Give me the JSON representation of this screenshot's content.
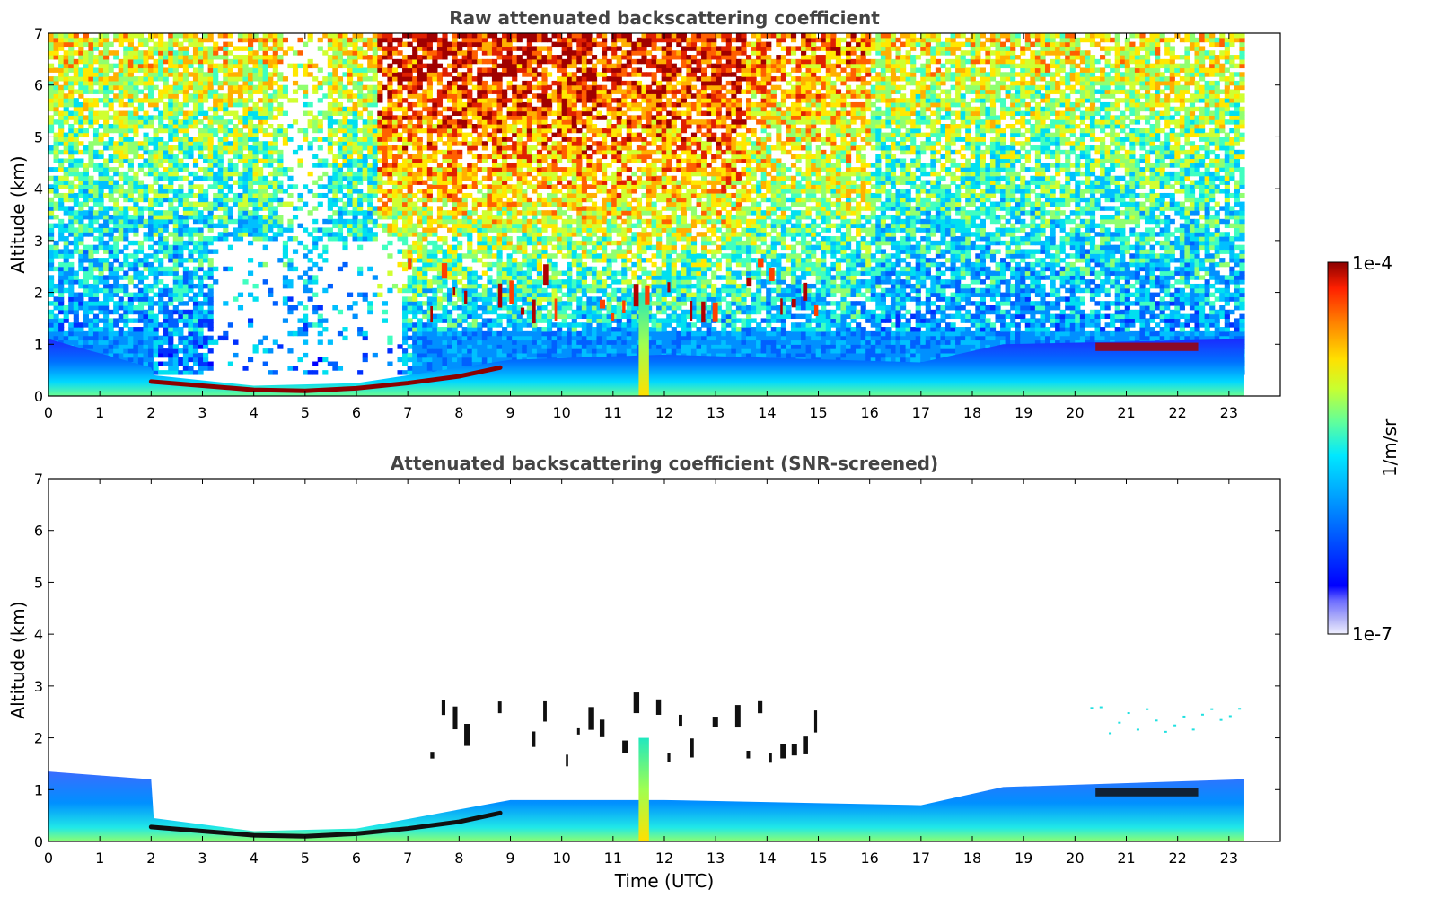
{
  "chart_data": [
    {
      "type": "heatmap",
      "title": "Raw attenuated backscattering coefficient",
      "xlabel": "",
      "ylabel": "Altitude (km)",
      "xlim": [
        0,
        24
      ],
      "ylim": [
        0,
        7
      ],
      "x_ticks": [
        "0",
        "1",
        "2",
        "3",
        "4",
        "5",
        "6",
        "7",
        "8",
        "9",
        "10",
        "11",
        "12",
        "13",
        "14",
        "15",
        "16",
        "17",
        "18",
        "19",
        "20",
        "21",
        "22",
        "23"
      ],
      "y_ticks": [
        "0",
        "1",
        "2",
        "3",
        "4",
        "5",
        "6",
        "7"
      ],
      "data_extent_x": [
        0,
        23.3
      ],
      "features": {
        "nighttime_boundary_layer": [
          {
            "t": 2.0,
            "alt_km": 0.28
          },
          {
            "t": 3.0,
            "alt_km": 0.2
          },
          {
            "t": 4.0,
            "alt_km": 0.12
          },
          {
            "t": 5.0,
            "alt_km": 0.1
          },
          {
            "t": 6.0,
            "alt_km": 0.15
          },
          {
            "t": 7.0,
            "alt_km": 0.25
          },
          {
            "t": 8.0,
            "alt_km": 0.38
          },
          {
            "t": 8.8,
            "alt_km": 0.55
          }
        ],
        "cloud_layer_1.5_2.5km_period_utc": [
          7,
          15
        ],
        "precipitation_column_utc": [
          11.5,
          11.7
        ],
        "evening_cloud_layer": {
          "t_start": 20.4,
          "t_end": 22.4,
          "alt_km": 0.95
        }
      }
    },
    {
      "type": "heatmap",
      "title": "Attenuated backscattering coefficient (SNR-screened)",
      "xlabel": "Time (UTC)",
      "ylabel": "Altitude (km)",
      "xlim": [
        0,
        24
      ],
      "ylim": [
        0,
        7
      ],
      "x_ticks": [
        "0",
        "1",
        "2",
        "3",
        "4",
        "5",
        "6",
        "7",
        "8",
        "9",
        "10",
        "11",
        "12",
        "13",
        "14",
        "15",
        "16",
        "17",
        "18",
        "19",
        "20",
        "21",
        "22",
        "23"
      ],
      "y_ticks": [
        "0",
        "1",
        "2",
        "3",
        "4",
        "5",
        "6",
        "7"
      ],
      "data_extent_x": [
        0,
        23.3
      ],
      "features": {
        "boundary_layer_top": [
          {
            "t": 0,
            "alt_km": 1.35
          },
          {
            "t": 2.0,
            "alt_km": 1.2
          },
          {
            "t": 2.05,
            "alt_km": 0.45
          },
          {
            "t": 4,
            "alt_km": 0.2
          },
          {
            "t": 6,
            "alt_km": 0.25
          },
          {
            "t": 9,
            "alt_km": 0.8
          },
          {
            "t": 12,
            "alt_km": 0.8
          },
          {
            "t": 17,
            "alt_km": 0.7
          },
          {
            "t": 18.6,
            "alt_km": 1.05
          },
          {
            "t": 23.3,
            "alt_km": 1.2
          }
        ],
        "isolated_aerosol_layer": {
          "t_start": 20.3,
          "t_end": 23.2,
          "alt_km": [
            2.0,
            2.6
          ]
        }
      }
    }
  ],
  "colorbar": {
    "label": "1/m/sr",
    "max_label": "1e-4",
    "min_label": "1e-7",
    "scale": "log",
    "colormap": "jet-like",
    "colors": [
      "#f0f0ff",
      "#b4b4f8",
      "#6c6cff",
      "#0000ff",
      "#0050ff",
      "#00a0ff",
      "#00e8ff",
      "#60ff9c",
      "#c8ff30",
      "#ffe000",
      "#ff8000",
      "#ff2000",
      "#8b0000"
    ]
  }
}
